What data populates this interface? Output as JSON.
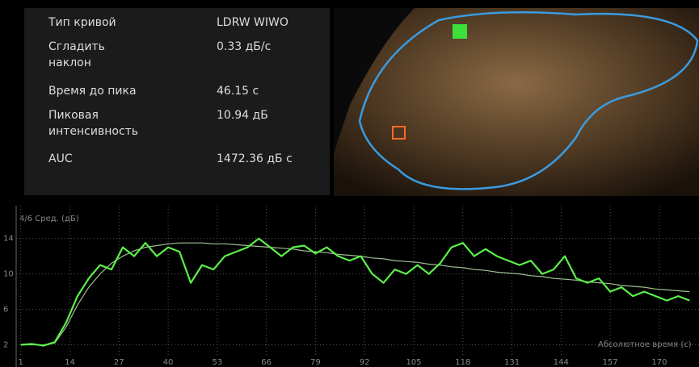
{
  "table": {
    "rows": [
      [
        "Тип кривой",
        "LDRW WIWO"
      ],
      [
        "Сгладить наклон",
        "0.33 дБ/с"
      ],
      [
        "Время до пика",
        "46.15 с"
      ],
      [
        "Пиковая интенсивность",
        "10.94 дБ"
      ],
      [
        "AUC",
        "1472.36 дБ с"
      ]
    ]
  },
  "chart_data": {
    "type": "line",
    "y_label": "4/6 Сред. (дБ)",
    "x_label": "Абсолютное время (с)",
    "x": [
      1,
      4,
      7,
      10,
      13,
      16,
      19,
      22,
      25,
      28,
      31,
      34,
      37,
      40,
      43,
      46,
      49,
      52,
      55,
      58,
      61,
      64,
      67,
      70,
      73,
      76,
      79,
      82,
      85,
      88,
      91,
      94,
      97,
      100,
      103,
      106,
      109,
      112,
      115,
      118,
      121,
      124,
      127,
      130,
      133,
      136,
      139,
      142,
      145,
      148,
      151,
      154,
      157,
      160,
      163,
      166,
      169,
      172,
      175,
      178
    ],
    "series": [
      {
        "color": "#5cf04a",
        "values": [
          2,
          2.1,
          1.9,
          2.3,
          4.5,
          7.5,
          9.5,
          11,
          10.5,
          13,
          12,
          13.5,
          12,
          13,
          12.5,
          9,
          11,
          10.5,
          12,
          12.5,
          13,
          14,
          13,
          12,
          13,
          13.2,
          12.3,
          13,
          12,
          11.5,
          12,
          10,
          9,
          10.5,
          10,
          11,
          10,
          11.2,
          13,
          13.5,
          12,
          12.8,
          12,
          11.5,
          11,
          11.5,
          10,
          10.5,
          12,
          9.5,
          9,
          9.5,
          8,
          8.5,
          7.5,
          8,
          7.5,
          7,
          7.5,
          7
        ]
      },
      {
        "color": "#9fbf8f",
        "values": [
          2,
          2,
          2,
          2.2,
          4,
          6.5,
          8.5,
          10,
          11.2,
          12,
          12.6,
          13,
          13.2,
          13.4,
          13.5,
          13.5,
          13.5,
          13.4,
          13.4,
          13.3,
          13.2,
          13.1,
          13,
          12.9,
          12.8,
          12.6,
          12.5,
          12.4,
          12.2,
          12.1,
          12,
          11.8,
          11.7,
          11.5,
          11.4,
          11.3,
          11.1,
          11,
          10.8,
          10.7,
          10.5,
          10.4,
          10.2,
          10.1,
          10,
          9.8,
          9.7,
          9.5,
          9.4,
          9.3,
          9.1,
          9,
          8.9,
          8.7,
          8.6,
          8.5,
          8.3,
          8.2,
          8.1,
          8
        ]
      }
    ],
    "xlim": [
      -4.5,
      180.5
    ],
    "ylim": [
      -0.5,
      17.7
    ],
    "xticks": [
      1,
      14,
      27,
      40,
      53,
      66,
      79,
      92,
      105,
      118,
      131,
      144,
      157,
      170
    ],
    "yticks": [
      14,
      10,
      6,
      2
    ],
    "grid": true
  }
}
